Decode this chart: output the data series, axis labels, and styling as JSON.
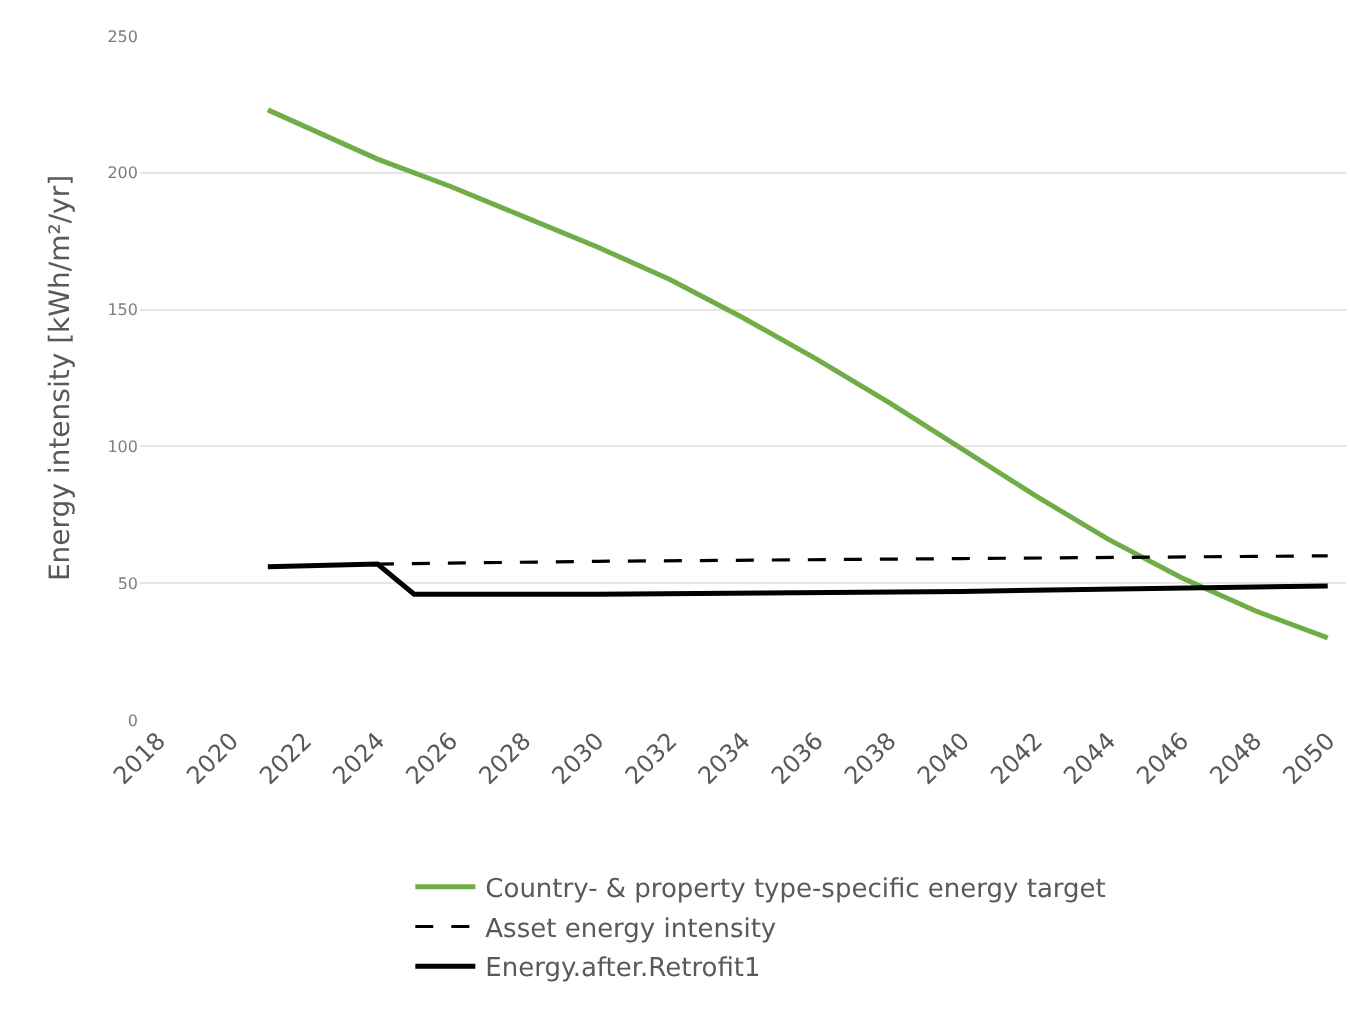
{
  "chart_data": {
    "type": "line",
    "ylabel": "Energy intensity [kWh/m²/yr]",
    "xlim": [
      2017.5,
      2050.5
    ],
    "xticks": [
      2018,
      2020,
      2022,
      2024,
      2026,
      2028,
      2030,
      2032,
      2034,
      2036,
      2038,
      2040,
      2042,
      2044,
      2046,
      2048,
      2050
    ],
    "ylim": [
      0,
      250
    ],
    "yticks": [
      0,
      50,
      100,
      150,
      200,
      250
    ],
    "grid": "y",
    "legend": "bottom",
    "series": [
      {
        "name": "Country- & property type-specific energy target",
        "color": "#70ad47",
        "line_style": "solid",
        "x": [
          2021,
          2024,
          2026,
          2028,
          2030,
          2032,
          2034,
          2036,
          2038,
          2040,
          2042,
          2044,
          2046,
          2048,
          2050
        ],
        "values": [
          223,
          205,
          195,
          184,
          173,
          161,
          147,
          132,
          116,
          99,
          82,
          66,
          52,
          40,
          30
        ]
      },
      {
        "name": "Asset energy intensity",
        "color": "#000000",
        "line_style": "dashed",
        "x": [
          2021,
          2024,
          2030,
          2040,
          2050
        ],
        "values": [
          56,
          57,
          58,
          59,
          60
        ]
      },
      {
        "name": "Energy.after.Retrofit1",
        "color": "#000000",
        "line_style": "solid",
        "x": [
          2021,
          2024,
          2025,
          2030,
          2040,
          2050
        ],
        "values": [
          56,
          57,
          46,
          46,
          47,
          49
        ]
      }
    ]
  }
}
